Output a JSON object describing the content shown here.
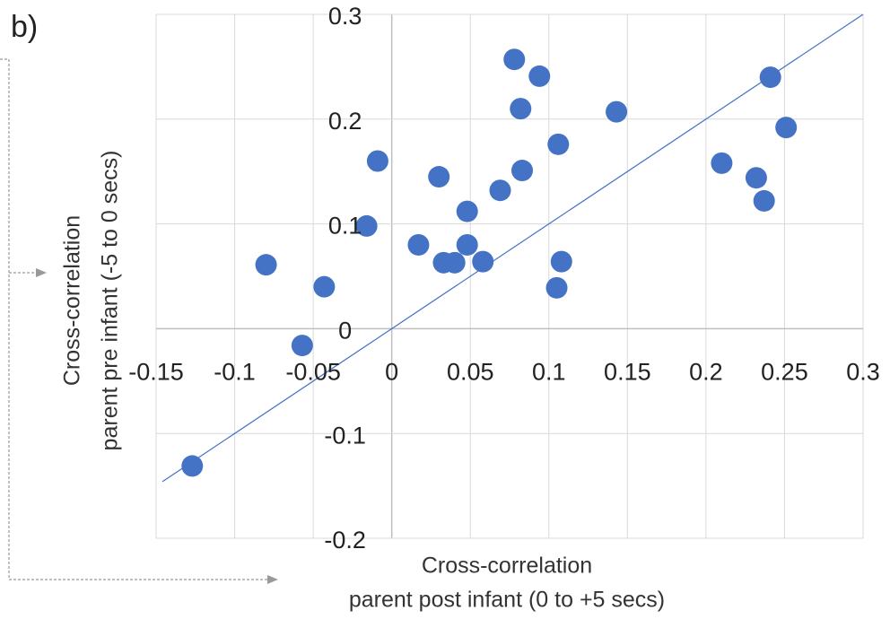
{
  "chart_data": {
    "type": "scatter",
    "panel_label": "b)",
    "x_label": [
      "Cross-correlation",
      "parent post infant (0 to +5 secs)"
    ],
    "y_label": [
      "Cross-correlation",
      "parent pre infant (-5 to 0 secs)"
    ],
    "xlim": [
      -0.15,
      0.3
    ],
    "ylim": [
      -0.2,
      0.3
    ],
    "xticks": [
      -0.15,
      -0.1,
      -0.05,
      0,
      0.05,
      0.1,
      0.15,
      0.2,
      0.25,
      0.3
    ],
    "yticks": [
      -0.2,
      -0.1,
      0,
      0.1,
      0.2,
      0.3
    ],
    "grid": true,
    "series": [
      {
        "color": "#4472c4",
        "x": [
          -0.127,
          -0.08,
          -0.057,
          -0.043,
          -0.016,
          -0.009,
          0.017,
          0.03,
          0.033,
          0.04,
          0.048,
          0.048,
          0.058,
          0.069,
          0.078,
          0.083,
          0.082,
          0.094,
          0.105,
          0.106,
          0.108,
          0.143,
          0.21,
          0.232,
          0.237,
          0.241,
          0.251
        ],
        "values": [
          -0.131,
          0.061,
          -0.016,
          0.04,
          0.098,
          0.16,
          0.08,
          0.145,
          0.063,
          0.063,
          0.112,
          0.08,
          0.064,
          0.132,
          0.257,
          0.151,
          0.21,
          0.241,
          0.039,
          0.176,
          0.064,
          0.207,
          0.158,
          0.144,
          0.122,
          0.24,
          0.192
        ]
      }
    ],
    "reference_line": {
      "color": "#4472c4",
      "x": [
        -0.146,
        0.3
      ],
      "values": [
        -0.146,
        0.3
      ]
    }
  }
}
